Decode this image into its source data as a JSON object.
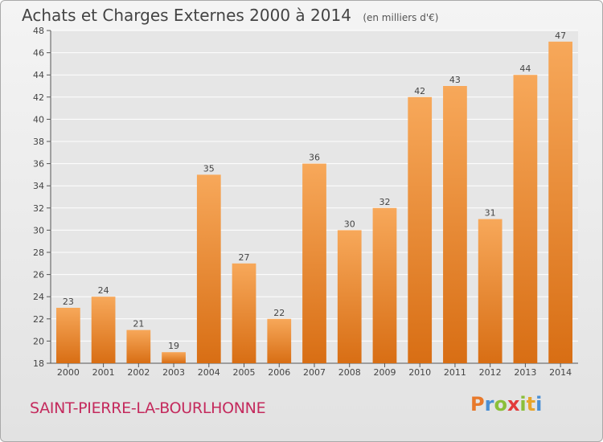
{
  "header": {
    "title": "Achats et Charges Externes 2000 à 2014",
    "unit": "(en milliers d'€)"
  },
  "footer": {
    "commune": "SAINT-PIERRE-LA-BOURLHONNE",
    "logo_letters": [
      "P",
      "r",
      "o",
      "x",
      "i",
      "t",
      "i"
    ],
    "logo_colors": [
      "#e8792b",
      "#4a8fd4",
      "#8bbf3a",
      "#e23a3a",
      "#8bbf3a",
      "#e8a52b",
      "#4a8fd4"
    ]
  },
  "chart_data": {
    "type": "bar",
    "title": "Achats et Charges Externes 2000 à 2014",
    "xlabel": "",
    "ylabel": "",
    "categories": [
      "2000",
      "2001",
      "2002",
      "2003",
      "2004",
      "2005",
      "2006",
      "2007",
      "2008",
      "2009",
      "2010",
      "2011",
      "2012",
      "2013",
      "2014"
    ],
    "values": [
      23,
      24,
      21,
      19,
      35,
      27,
      22,
      36,
      30,
      32,
      42,
      43,
      31,
      44,
      47
    ],
    "ylim": [
      18,
      48
    ],
    "yticks": [
      18,
      20,
      22,
      24,
      26,
      28,
      30,
      32,
      34,
      36,
      38,
      40,
      42,
      44,
      46,
      48
    ],
    "grid": true,
    "bar_color_top": "#f7a85a",
    "bar_color_bottom": "#d86e14"
  }
}
